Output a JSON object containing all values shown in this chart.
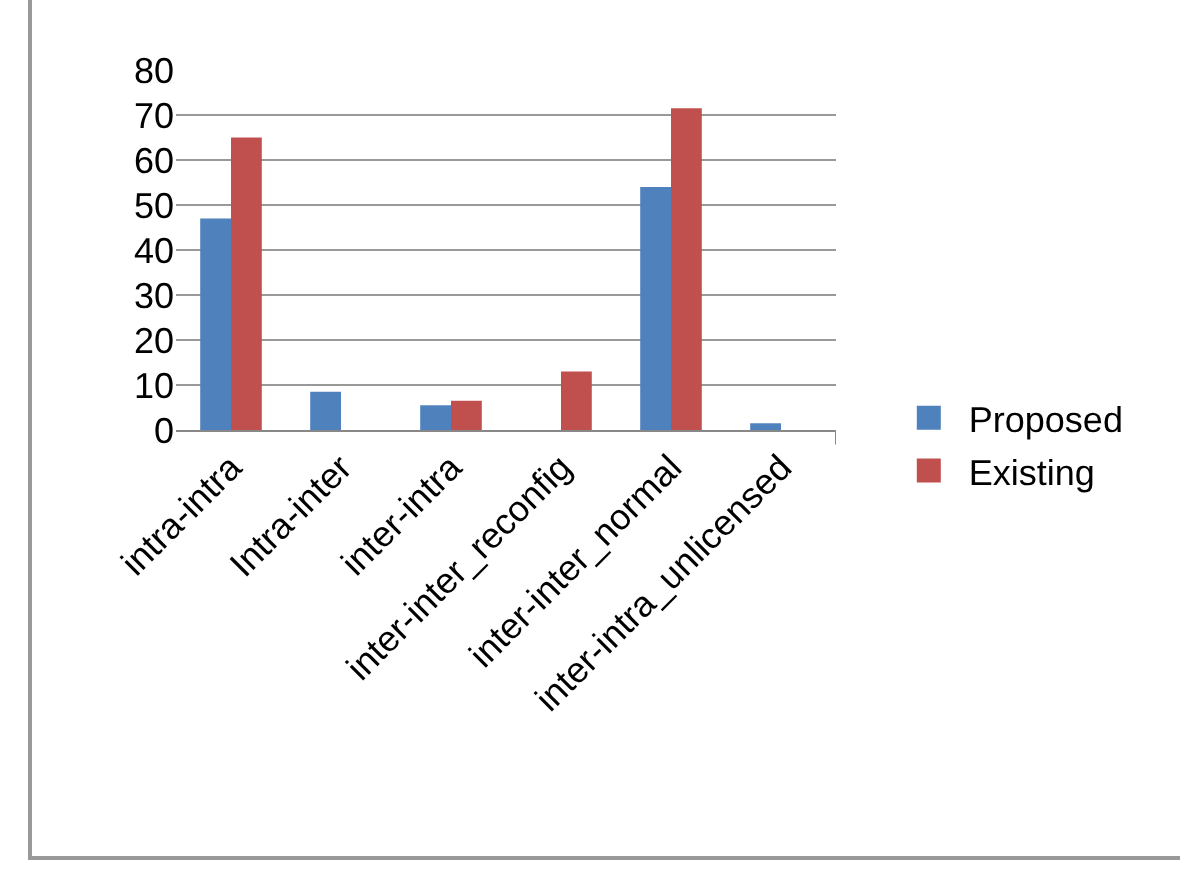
{
  "chart_data": {
    "type": "bar",
    "categories": [
      "intra-intra",
      "Intra-inter",
      "inter-intra",
      "inter-inter_reconfig",
      "inter-inter_normal",
      "inter-intra_unlicensed"
    ],
    "series": [
      {
        "name": "Proposed",
        "color": "#4f81bd",
        "values": [
          47,
          8.5,
          5.5,
          null,
          54,
          1.5
        ]
      },
      {
        "name": "Existing",
        "color": "#c0504d",
        "values": [
          65,
          null,
          6.5,
          13,
          71.5,
          null
        ]
      }
    ],
    "ylim": [
      0,
      80
    ],
    "yticks": [
      0,
      10,
      20,
      30,
      40,
      50,
      60,
      70,
      80
    ],
    "grid": "y",
    "legend": "right"
  }
}
